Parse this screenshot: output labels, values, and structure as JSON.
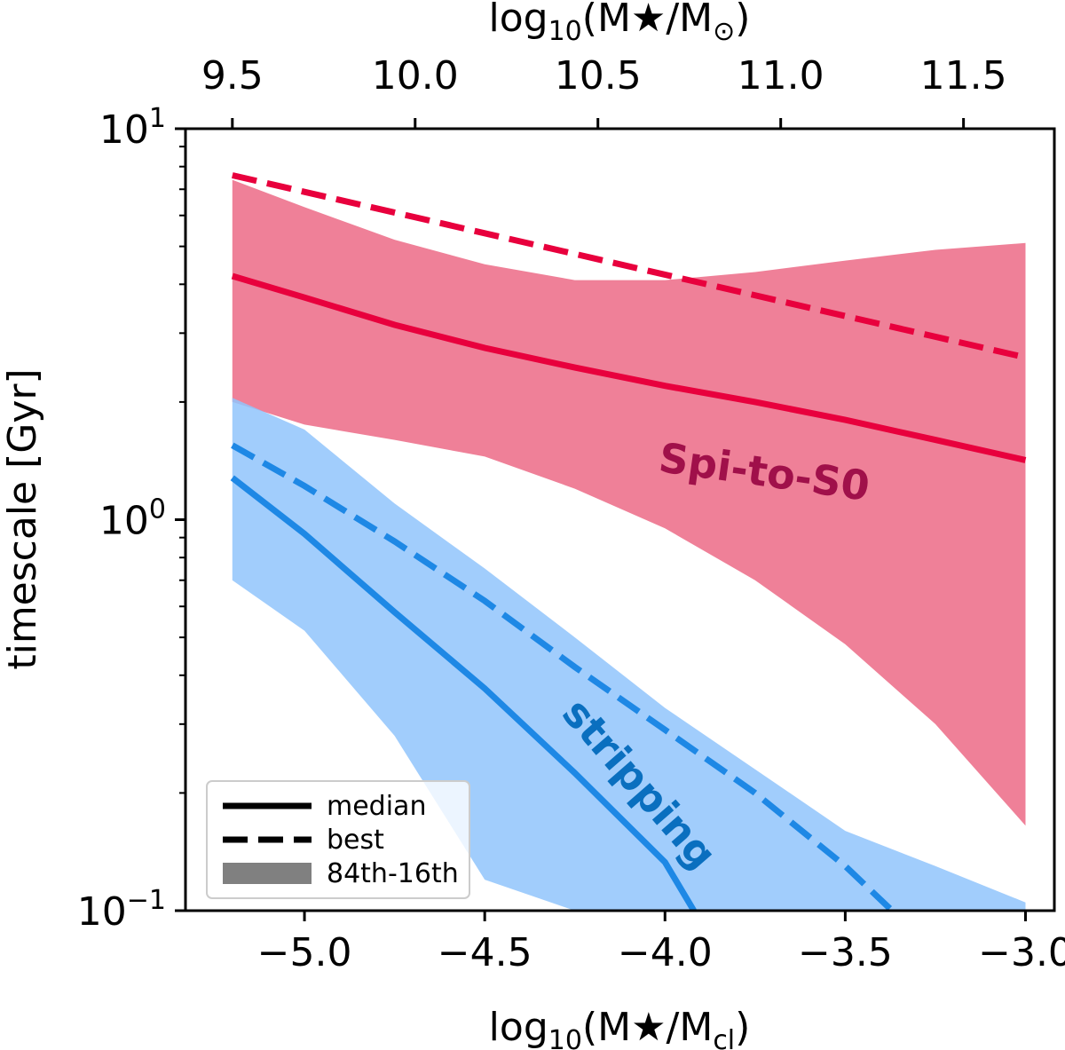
{
  "chart_data": {
    "type": "line",
    "xlabel": "log₁₀(M★/M_cl)",
    "xlabel_parts": {
      "prefix": "log",
      "sub": "10",
      "mid": "(M★/M",
      "sub2": "cl",
      "suffix": ")"
    },
    "x2label_parts": {
      "prefix": "log",
      "sub": "10",
      "mid": "(M★/M",
      "sub2": "⊙",
      "suffix": ")"
    },
    "ylabel": "timescale [Gyr]",
    "xlim": [
      -5.33,
      -2.92
    ],
    "ylim": [
      0.1,
      10
    ],
    "yscale": "log",
    "x_ticks": [
      -5.0,
      -4.5,
      -4.0,
      -3.5,
      -3.0
    ],
    "x_tick_labels": [
      "−5.0",
      "−4.5",
      "−4.0",
      "−3.5",
      "−3.0"
    ],
    "x2_ticks": [
      -5.2,
      -4.693,
      -4.186,
      -3.679,
      -3.172
    ],
    "x2_tick_labels": [
      "9.5",
      "10.0",
      "10.5",
      "11.0",
      "11.5"
    ],
    "y_ticks": [
      0.1,
      1,
      10
    ],
    "y_tick_labels": [
      {
        "base": "10",
        "exp": "−1"
      },
      {
        "base": "10",
        "exp": "0"
      },
      {
        "base": "10",
        "exp": "1"
      }
    ],
    "grid": false,
    "legend": {
      "placement": "lower-left",
      "entries": [
        {
          "label": "median",
          "style": "solid"
        },
        {
          "label": "best",
          "style": "dashed"
        },
        {
          "label": "84th-16th",
          "style": "band"
        }
      ]
    },
    "colors": {
      "spi_line": "#e8003d",
      "spi_band": "#ef8098",
      "strip_line": "#1e88e5",
      "strip_band": "#90c4fb",
      "spi_text": "#a0104a",
      "strip_text": "#0a6fbf"
    },
    "annotations": [
      {
        "text": "Spi-to-S0",
        "x": -3.73,
        "y": 1.22,
        "rotation": 8,
        "group": "spi"
      },
      {
        "text": "stripping",
        "x": -4.1,
        "y": 0.2,
        "rotation": 49,
        "group": "strip"
      }
    ],
    "series": [
      {
        "group": "spi",
        "kind": "median",
        "x": [
          -5.2,
          -5.0,
          -4.75,
          -4.5,
          -4.25,
          -4.0,
          -3.75,
          -3.5,
          -3.25,
          -3.0
        ],
        "y": [
          4.2,
          3.7,
          3.15,
          2.75,
          2.45,
          2.2,
          2.0,
          1.8,
          1.6,
          1.42
        ]
      },
      {
        "group": "spi",
        "kind": "best",
        "x": [
          -5.2,
          -3.0
        ],
        "y": [
          7.6,
          2.6
        ]
      },
      {
        "group": "spi",
        "kind": "band",
        "x": [
          -5.2,
          -5.0,
          -4.75,
          -4.5,
          -4.25,
          -4.0,
          -3.75,
          -3.5,
          -3.25,
          -3.0
        ],
        "upper": [
          7.4,
          6.3,
          5.2,
          4.5,
          4.1,
          4.1,
          4.3,
          4.6,
          4.9,
          5.1
        ],
        "lower": [
          2.0,
          1.75,
          1.6,
          1.45,
          1.2,
          0.95,
          0.7,
          0.48,
          0.3,
          0.165
        ]
      },
      {
        "group": "strip",
        "kind": "median",
        "x": [
          -5.2,
          -5.0,
          -4.75,
          -4.5,
          -4.25,
          -4.0,
          -3.92
        ],
        "y": [
          1.28,
          0.92,
          0.58,
          0.37,
          0.225,
          0.133,
          0.1
        ]
      },
      {
        "group": "strip",
        "kind": "best",
        "x": [
          -5.2,
          -5.0,
          -4.75,
          -4.5,
          -4.25,
          -4.0,
          -3.75,
          -3.5,
          -3.37
        ],
        "y": [
          1.55,
          1.22,
          0.88,
          0.62,
          0.42,
          0.29,
          0.2,
          0.13,
          0.1
        ]
      },
      {
        "group": "strip",
        "kind": "band",
        "x": [
          -5.2,
          -5.0,
          -4.75,
          -4.5,
          -4.25,
          -4.0,
          -3.75,
          -3.5,
          -3.25,
          -3.0
        ],
        "upper": [
          2.05,
          1.7,
          1.1,
          0.75,
          0.5,
          0.33,
          0.23,
          0.16,
          0.13,
          0.105
        ],
        "lower": [
          0.7,
          0.52,
          0.28,
          0.12,
          0.1,
          0.1,
          0.1,
          0.1,
          0.1,
          0.1
        ]
      }
    ]
  }
}
